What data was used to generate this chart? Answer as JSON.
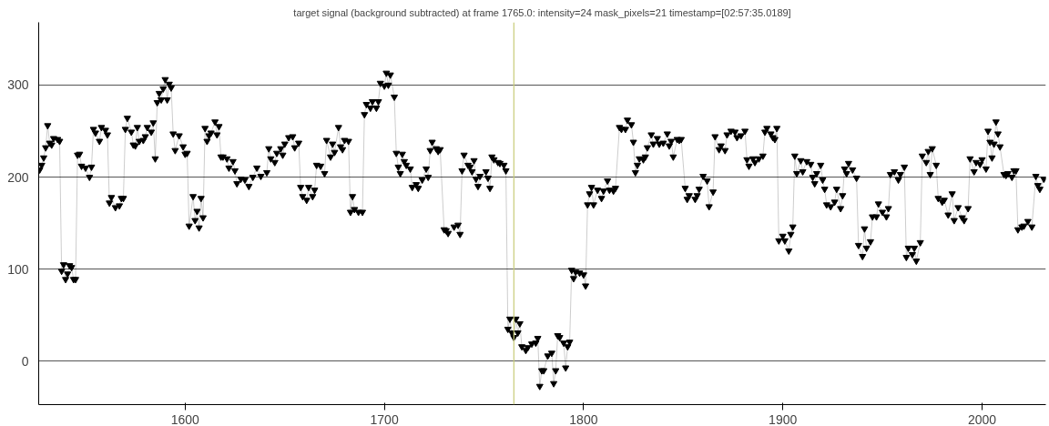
{
  "chart_data": {
    "type": "line",
    "title": "target signal (background subtracted) at frame 1765.0: intensity=24 mask_pixels=21 timestamp=[02:57:35.0189]",
    "marker": "triangle",
    "grid": "y",
    "xlim": [
      1526.5,
      2032
    ],
    "xticks": [
      1600,
      1700,
      1800,
      1900,
      2000
    ],
    "ylim": [
      -47,
      368
    ],
    "yticks": [
      0,
      100,
      200,
      300
    ],
    "ref_lines": [
      {
        "axis": "x",
        "value": 1765,
        "label": null,
        "color": "#c8cc7a"
      }
    ],
    "series": [
      {
        "color": "#000000",
        "x": [
          1527,
          1528,
          1529,
          1530,
          1531,
          1532,
          1533,
          1534,
          1536,
          1537,
          1538,
          1539,
          1540,
          1541,
          1542,
          1543,
          1544,
          1545,
          1546,
          1547,
          1548,
          1550,
          1552,
          1553,
          1554,
          1555,
          1557,
          1558,
          1560,
          1561,
          1562,
          1563,
          1565,
          1567,
          1568,
          1569,
          1570,
          1571,
          1573,
          1574,
          1575,
          1576,
          1577,
          1579,
          1580,
          1581,
          1583,
          1584,
          1585,
          1586,
          1587,
          1588,
          1589,
          1590,
          1591,
          1592,
          1593,
          1594,
          1595,
          1597,
          1599,
          1600,
          1601,
          1602,
          1604,
          1605,
          1606,
          1607,
          1608,
          1609,
          1610,
          1611,
          1612,
          1613,
          1615,
          1616,
          1617,
          1618,
          1619,
          1621,
          1622,
          1624,
          1625,
          1626,
          1628,
          1630,
          1632,
          1634,
          1636,
          1638,
          1641,
          1642,
          1643,
          1645,
          1646,
          1648,
          1649,
          1650,
          1652,
          1654,
          1655,
          1657,
          1658,
          1659,
          1661,
          1662,
          1664,
          1665,
          1666,
          1668,
          1670,
          1671,
          1673,
          1674,
          1675,
          1677,
          1678,
          1679,
          1680,
          1682,
          1683,
          1684,
          1685,
          1687,
          1689,
          1690,
          1691,
          1693,
          1694,
          1696,
          1697,
          1698,
          1700,
          1701,
          1702,
          1703,
          1705,
          1706,
          1707,
          1708,
          1709,
          1710,
          1711,
          1713,
          1714,
          1716,
          1717,
          1719,
          1721,
          1722,
          1723,
          1724,
          1726,
          1727,
          1728,
          1730,
          1731,
          1732,
          1735,
          1737,
          1738,
          1739,
          1740,
          1742,
          1743,
          1744,
          1745,
          1746,
          1747,
          1748,
          1751,
          1752,
          1753,
          1754,
          1755,
          1757,
          1758,
          1760,
          1761,
          1762,
          1763,
          1764,
          1765,
          1766,
          1767,
          1768,
          1769,
          1771,
          1772,
          1774,
          1776,
          1777,
          1778,
          1779,
          1780,
          1782,
          1784,
          1785,
          1786,
          1787,
          1788,
          1790,
          1791,
          1792,
          1793,
          1794,
          1795,
          1796,
          1798,
          1800,
          1801,
          1802,
          1803,
          1804,
          1805,
          1807,
          1809,
          1810,
          1812,
          1813,
          1815,
          1816,
          1818,
          1819,
          1821,
          1822,
          1824,
          1825,
          1826,
          1827,
          1828,
          1830,
          1831,
          1832,
          1834,
          1835,
          1837,
          1838,
          1840,
          1842,
          1843,
          1844,
          1845,
          1847,
          1848,
          1849,
          1851,
          1852,
          1853,
          1856,
          1857,
          1858,
          1860,
          1862,
          1863,
          1865,
          1866,
          1868,
          1869,
          1871,
          1872,
          1874,
          1876,
          1877,
          1879,
          1881,
          1882,
          1883,
          1885,
          1886,
          1888,
          1890,
          1891,
          1892,
          1894,
          1895,
          1896,
          1897,
          1898,
          1900,
          1901,
          1903,
          1904,
          1905,
          1906,
          1907,
          1909,
          1910,
          1912,
          1914,
          1915,
          1916,
          1917,
          1919,
          1920,
          1921,
          1922,
          1924,
          1926,
          1927,
          1929,
          1930,
          1931,
          1932,
          1933,
          1935,
          1937,
          1938,
          1940,
          1941,
          1942,
          1944,
          1945,
          1947,
          1948,
          1950,
          1952,
          1953,
          1954,
          1956,
          1958,
          1959,
          1961,
          1962,
          1963,
          1965,
          1966,
          1967,
          1969,
          1970,
          1972,
          1973,
          1974,
          1975,
          1977,
          1978,
          1980,
          1981,
          1983,
          1985,
          1986,
          1988,
          1990,
          1991,
          1993,
          1994,
          1996,
          1997,
          1999,
          2000,
          2002,
          2003,
          2004,
          2005,
          2006,
          2007,
          2008,
          2009,
          2011,
          2012,
          2013,
          2015,
          2016,
          2017,
          2018,
          2020,
          2021,
          2023,
          2025,
          2027,
          2028,
          2029,
          2031
        ],
        "values": [
          208,
          213,
          221,
          232,
          256,
          237,
          235,
          242,
          241,
          239,
          98,
          105,
          89,
          95,
          104,
          102,
          89,
          89,
          224,
          225,
          212,
          210,
          200,
          211,
          252,
          248,
          239,
          254,
          251,
          246,
          172,
          178,
          167,
          169,
          177,
          177,
          252,
          264,
          249,
          235,
          234,
          254,
          239,
          240,
          244,
          254,
          249,
          259,
          220,
          281,
          291,
          284,
          296,
          306,
          284,
          301,
          297,
          247,
          229,
          245,
          233,
          225,
          226,
          147,
          179,
          153,
          163,
          145,
          177,
          156,
          253,
          239,
          245,
          248,
          260,
          246,
          255,
          222,
          222,
          220,
          210,
          217,
          207,
          193,
          198,
          197,
          190,
          200,
          210,
          201,
          205,
          231,
          220,
          216,
          226,
          231,
          224,
          236,
          243,
          244,
          232,
          237,
          189,
          179,
          175,
          189,
          179,
          186,
          213,
          212,
          204,
          240,
          222,
          236,
          227,
          254,
          233,
          230,
          240,
          239,
          162,
          179,
          165,
          162,
          162,
          268,
          279,
          275,
          282,
          275,
          282,
          302,
          299,
          313,
          300,
          311,
          287,
          226,
          211,
          204,
          225,
          217,
          213,
          209,
          189,
          192,
          188,
          197,
          209,
          200,
          229,
          238,
          231,
          228,
          230,
          143,
          142,
          139,
          146,
          148,
          138,
          207,
          224,
          213,
          211,
          206,
          218,
          198,
          190,
          201,
          206,
          199,
          188,
          222,
          219,
          216,
          215,
          213,
          207,
          35,
          46,
          31,
          26,
          46,
          31,
          41,
          16,
          12,
          15,
          19,
          20,
          25,
          -27,
          -10,
          -10,
          6,
          9,
          -24,
          -10,
          28,
          26,
          20,
          -7,
          16,
          21,
          99,
          90,
          97,
          96,
          94,
          82,
          170,
          182,
          189,
          170,
          186,
          177,
          185,
          196,
          186,
          185,
          188,
          254,
          252,
          252,
          262,
          257,
          238,
          205,
          213,
          220,
          219,
          222,
          232,
          246,
          236,
          242,
          236,
          237,
          247,
          234,
          239,
          222,
          241,
          240,
          241,
          188,
          176,
          180,
          176,
          180,
          187,
          201,
          196,
          168,
          184,
          244,
          230,
          234,
          229,
          246,
          250,
          249,
          243,
          245,
          250,
          219,
          212,
          220,
          216,
          220,
          223,
          249,
          253,
          247,
          243,
          241,
          253,
          131,
          136,
          131,
          120,
          138,
          146,
          223,
          204,
          218,
          206,
          217,
          214,
          200,
          193,
          204,
          213,
          197,
          187,
          170,
          168,
          173,
          187,
          166,
          180,
          209,
          204,
          215,
          208,
          199,
          126,
          114,
          144,
          123,
          130,
          157,
          157,
          171,
          162,
          157,
          166,
          203,
          206,
          197,
          203,
          211,
          113,
          123,
          116,
          123,
          109,
          129,
          223,
          216,
          228,
          203,
          231,
          213,
          177,
          173,
          175,
          159,
          182,
          153,
          167,
          156,
          153,
          166,
          220,
          206,
          216,
          214,
          219,
          209,
          250,
          238,
          221,
          236,
          260,
          247,
          233,
          203,
          202,
          204,
          200,
          207,
          207,
          143,
          146,
          147,
          152,
          146,
          201,
          191,
          187,
          198
        ]
      }
    ]
  }
}
